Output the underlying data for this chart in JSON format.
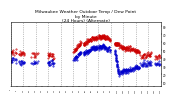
{
  "title": "Milwaukee Weather Outdoor Temp / Dew Point\nby Minute\n(24 Hours) (Alternate)",
  "title_fontsize": 3.2,
  "bg_color": "#ffffff",
  "temp_color": "#cc0000",
  "dew_color": "#0000cc",
  "ylim": [
    5,
    85
  ],
  "xlim": [
    0,
    1440
  ],
  "grid_color": "#888888",
  "grid_style": ":",
  "grid_lw": 0.5,
  "marker_size": 0.8,
  "num_minutes": 1440,
  "ytick_right": [
    10,
    20,
    30,
    40,
    50,
    60,
    70,
    80
  ]
}
